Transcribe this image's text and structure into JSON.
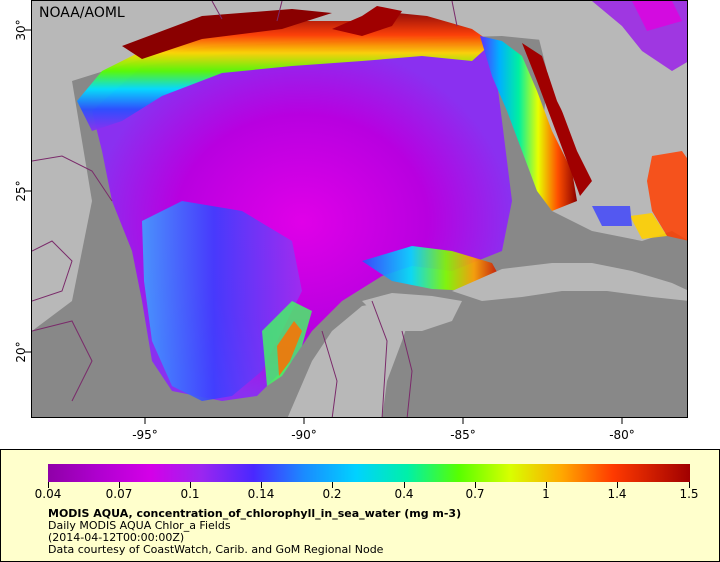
{
  "map": {
    "agency": "NOAA/AOML",
    "lon_ticks": [
      "-95°",
      "-90°",
      "-85°",
      "-80°"
    ],
    "lat_ticks": [
      "30°",
      "25°",
      "20°"
    ],
    "land_color": "#b8b8b8",
    "nodata_color": "#888888",
    "border_color": "#7a2a6a"
  },
  "legend": {
    "ticks": [
      "0.04",
      "0.07",
      "0.1",
      "0.14",
      "0.2",
      "0.4",
      "0.7",
      "1",
      "1.4",
      "1.5"
    ],
    "title": "MODIS AQUA, concentration_of_chlorophyll_in_sea_water (mg m-3)",
    "line2": "Daily MODIS AQUA Chlor_a Fields",
    "line3": "(2014-04-12T00:00:00Z)",
    "line4": "Data courtesy of CoastWatch, Carib. and GoM Regional Node"
  }
}
